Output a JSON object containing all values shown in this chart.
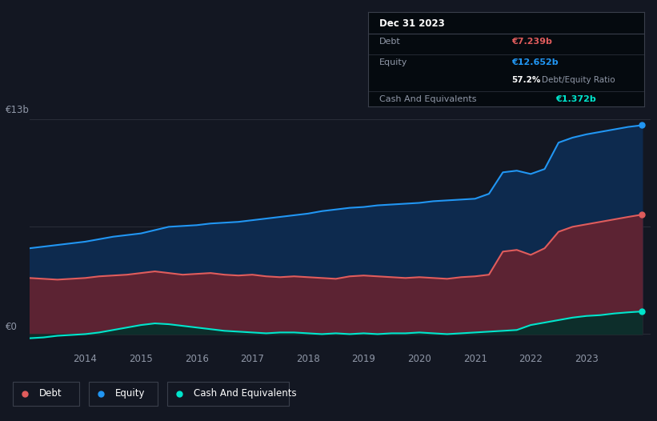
{
  "bg_color": "#131722",
  "plot_bg_color": "#131722",
  "grid_color": "#2a2e39",
  "title_date": "Dec 31 2023",
  "debt_value": "€7.239b",
  "equity_value": "€12.652b",
  "ratio_pct": "57.2%",
  "ratio_label": " Debt/Equity Ratio",
  "cash_value": "€1.372b",
  "debt_color": "#e05c5c",
  "equity_color": "#2196f3",
  "cash_color": "#00e5cc",
  "debt_fill": "#5c2333",
  "equity_fill": "#0d2a4e",
  "cash_fill": "#0d2e2b",
  "xlabel_color": "#9098a8",
  "ylabel_color": "#9098a8",
  "years": [
    2013.0,
    2013.25,
    2013.5,
    2013.75,
    2014.0,
    2014.25,
    2014.5,
    2014.75,
    2015.0,
    2015.25,
    2015.5,
    2015.75,
    2016.0,
    2016.25,
    2016.5,
    2016.75,
    2017.0,
    2017.25,
    2017.5,
    2017.75,
    2018.0,
    2018.25,
    2018.5,
    2018.75,
    2019.0,
    2019.25,
    2019.5,
    2019.75,
    2020.0,
    2020.25,
    2020.5,
    2020.75,
    2021.0,
    2021.25,
    2021.5,
    2021.75,
    2022.0,
    2022.25,
    2022.5,
    2022.75,
    2023.0,
    2023.25,
    2023.5,
    2023.75,
    2024.0
  ],
  "equity": [
    5.2,
    5.3,
    5.4,
    5.5,
    5.6,
    5.75,
    5.9,
    6.0,
    6.1,
    6.3,
    6.5,
    6.55,
    6.6,
    6.7,
    6.75,
    6.8,
    6.9,
    7.0,
    7.1,
    7.2,
    7.3,
    7.45,
    7.55,
    7.65,
    7.7,
    7.8,
    7.85,
    7.9,
    7.95,
    8.05,
    8.1,
    8.15,
    8.2,
    8.5,
    9.8,
    9.9,
    9.7,
    10.0,
    11.6,
    11.9,
    12.1,
    12.25,
    12.4,
    12.55,
    12.652
  ],
  "debt": [
    3.4,
    3.35,
    3.3,
    3.35,
    3.4,
    3.5,
    3.55,
    3.6,
    3.7,
    3.8,
    3.7,
    3.6,
    3.65,
    3.7,
    3.6,
    3.55,
    3.6,
    3.5,
    3.45,
    3.5,
    3.45,
    3.4,
    3.35,
    3.5,
    3.55,
    3.5,
    3.45,
    3.4,
    3.45,
    3.4,
    3.35,
    3.45,
    3.5,
    3.6,
    5.0,
    5.1,
    4.8,
    5.2,
    6.2,
    6.5,
    6.65,
    6.8,
    6.95,
    7.1,
    7.239
  ],
  "cash": [
    -0.25,
    -0.2,
    -0.1,
    -0.05,
    0.0,
    0.1,
    0.25,
    0.4,
    0.55,
    0.65,
    0.6,
    0.5,
    0.4,
    0.3,
    0.2,
    0.15,
    0.1,
    0.05,
    0.1,
    0.1,
    0.05,
    0.0,
    0.05,
    0.0,
    0.05,
    0.0,
    0.05,
    0.05,
    0.1,
    0.05,
    0.0,
    0.05,
    0.1,
    0.15,
    0.2,
    0.25,
    0.55,
    0.7,
    0.85,
    1.0,
    1.1,
    1.15,
    1.25,
    1.32,
    1.372
  ],
  "xticks": [
    2014,
    2015,
    2016,
    2017,
    2018,
    2019,
    2020,
    2021,
    2022,
    2023
  ],
  "ylim": [
    -0.8,
    14.5
  ],
  "ylabel_13b": "€13b",
  "ylabel_0": "€0",
  "grid_y_top": 13.0,
  "grid_y_mid": 6.5,
  "legend_items": [
    {
      "label": "Debt",
      "color": "#e05c5c"
    },
    {
      "label": "Equity",
      "color": "#2196f3"
    },
    {
      "label": "Cash And Equivalents",
      "color": "#00e5cc"
    }
  ]
}
